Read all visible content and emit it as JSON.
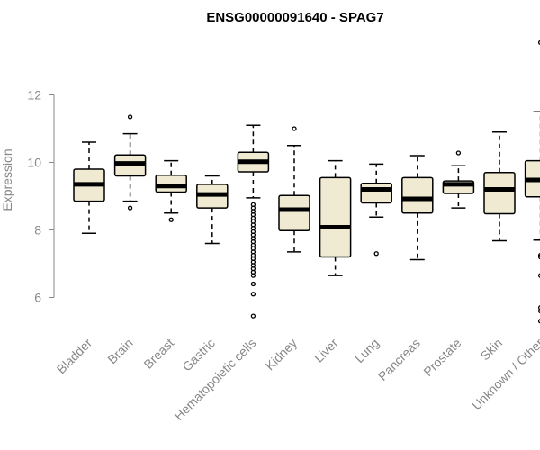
{
  "chart_data": {
    "type": "boxplot",
    "title": "ENSG00000091640 - SPAG7",
    "ylabel": "Expression",
    "xlabel": "",
    "ylim": [
      5.0,
      13.8
    ],
    "yticks": [
      6,
      8,
      10,
      12
    ],
    "grid": false,
    "box_color": "#f0ead2",
    "categories": [
      "Bladder",
      "Brain",
      "Breast",
      "Gastric",
      "Hematopoietic cells",
      "Kidney",
      "Liver",
      "Lung",
      "Pancreas",
      "Prostate",
      "Skin",
      "Unknown / Other"
    ],
    "boxes": [
      {
        "q1": 8.85,
        "median": 9.35,
        "q3": 9.8,
        "whisker_low": 7.9,
        "whisker_high": 10.6,
        "outliers": []
      },
      {
        "q1": 9.6,
        "median": 9.97,
        "q3": 10.22,
        "whisker_low": 8.85,
        "whisker_high": 10.85,
        "outliers": [
          11.35,
          8.65
        ]
      },
      {
        "q1": 9.12,
        "median": 9.3,
        "q3": 9.62,
        "whisker_low": 8.5,
        "whisker_high": 10.05,
        "outliers": [
          8.3
        ]
      },
      {
        "q1": 8.65,
        "median": 9.05,
        "q3": 9.35,
        "whisker_low": 7.6,
        "whisker_high": 9.6,
        "outliers": []
      },
      {
        "q1": 9.72,
        "median": 10.02,
        "q3": 10.3,
        "whisker_low": 8.95,
        "whisker_high": 11.1,
        "outliers": [
          8.75,
          8.65,
          8.55,
          8.45,
          8.35,
          8.25,
          8.15,
          8.05,
          7.95,
          7.85,
          7.75,
          7.65,
          7.55,
          7.45,
          7.35,
          7.25,
          7.15,
          7.05,
          6.95,
          6.85,
          6.75,
          6.65,
          6.4,
          6.1,
          5.45
        ]
      },
      {
        "q1": 7.98,
        "median": 8.6,
        "q3": 9.02,
        "whisker_low": 7.35,
        "whisker_high": 10.5,
        "outliers": [
          11.0
        ]
      },
      {
        "q1": 7.2,
        "median": 8.08,
        "q3": 9.55,
        "whisker_low": 6.65,
        "whisker_high": 10.05,
        "outliers": []
      },
      {
        "q1": 8.8,
        "median": 9.2,
        "q3": 9.38,
        "whisker_low": 8.38,
        "whisker_high": 9.95,
        "outliers": [
          7.3
        ]
      },
      {
        "q1": 8.5,
        "median": 8.92,
        "q3": 9.55,
        "whisker_low": 7.12,
        "whisker_high": 10.2,
        "outliers": []
      },
      {
        "q1": 9.08,
        "median": 9.35,
        "q3": 9.45,
        "whisker_low": 8.65,
        "whisker_high": 9.9,
        "outliers": [
          10.28
        ]
      },
      {
        "q1": 8.48,
        "median": 9.2,
        "q3": 9.7,
        "whisker_low": 7.68,
        "whisker_high": 10.9,
        "outliers": []
      },
      {
        "q1": 8.98,
        "median": 9.48,
        "q3": 10.05,
        "whisker_low": 7.7,
        "whisker_high": 11.5,
        "outliers": [
          13.55,
          7.25,
          7.2,
          6.65,
          5.7,
          5.6,
          5.3
        ]
      }
    ]
  }
}
